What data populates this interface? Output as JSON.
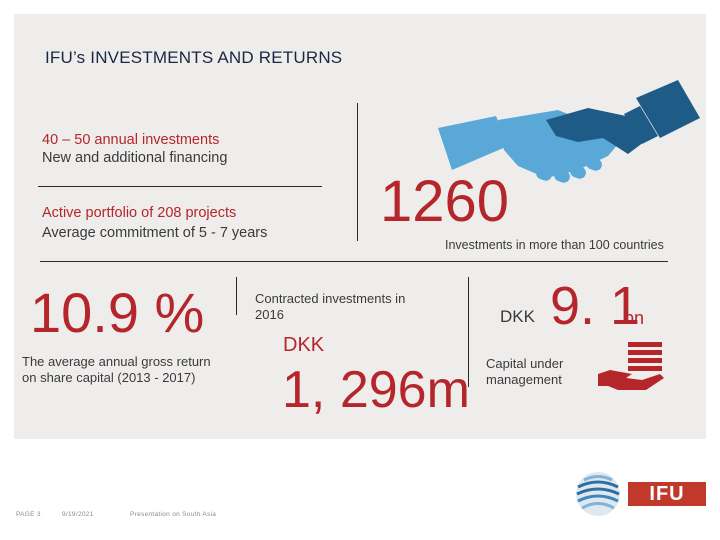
{
  "slide": {
    "title": "IFU’s INVESTMENTS AND RETURNS",
    "top_left": {
      "line1": "40 – 50 annual investments",
      "line2": "New and additional financing",
      "line3": "Active portfolio of 208 projects",
      "line4": "Average commitment of 5 - 7 years"
    },
    "stat_investments": {
      "value": "1260",
      "caption": "Investments in more than 100 countries"
    },
    "stat_return": {
      "value": "10.9 %",
      "caption_line1": "The average annual gross return",
      "caption_line2": "on share capital (2013 - 2017)"
    },
    "stat_contracted": {
      "caption_line1": "Contracted investments in",
      "caption_line2": "2016",
      "currency": "DKK",
      "value": "1, 296m"
    },
    "stat_capital": {
      "currency": "DKK",
      "value": "9. 1",
      "unit": "bn",
      "caption_line1": "Capital under",
      "caption_line2": "management"
    },
    "logo_text": "IFU",
    "footer": {
      "page": "PAGE 3",
      "date": "9/19/2021",
      "presentation": "Presentation on South Asia"
    }
  },
  "colors": {
    "accent_red": "#b5262a",
    "panel_bg": "#efedec",
    "handshake_dark": "#1e5b86",
    "handshake_light": "#5aa8d8"
  }
}
